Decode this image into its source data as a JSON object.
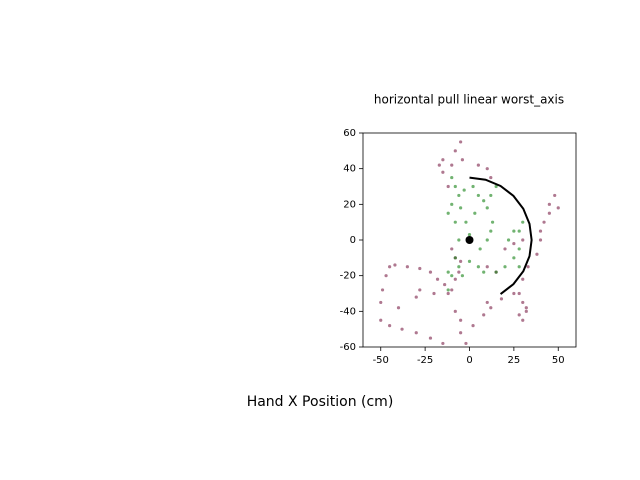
{
  "chart_data": {
    "type": "scatter",
    "title": "horizontal pull linear worst_axis",
    "x_label": "Hand X Position (cm)",
    "xlim": [
      -60,
      60
    ],
    "ylim": [
      -60,
      60
    ],
    "xticks": [
      -50,
      -25,
      0,
      25,
      50
    ],
    "yticks": [
      -60,
      -40,
      -20,
      0,
      20,
      40,
      60
    ],
    "series": [
      {
        "kind": "points",
        "color": "#6e0a34",
        "alpha": 0.55,
        "x": [
          -50,
          -50,
          -49,
          -47,
          -45,
          -42,
          -35,
          -28,
          -22,
          -18,
          -14,
          -10,
          -8,
          -6,
          -12,
          -20,
          -28,
          -30,
          -40,
          -45,
          -38,
          -30,
          -22,
          -15,
          -5,
          2,
          8,
          12,
          18,
          25,
          30,
          32,
          28,
          30,
          33,
          38,
          40,
          42,
          45,
          48,
          50,
          45,
          40,
          30,
          25,
          20,
          15,
          10,
          -5,
          -8,
          -10,
          -12,
          -15,
          -17,
          -15,
          -10,
          -8,
          -5,
          -4,
          5,
          10,
          12,
          -8,
          -5,
          -2,
          10,
          28,
          30,
          32
        ],
        "y": [
          -45,
          -35,
          -28,
          -20,
          -15,
          -14,
          -15,
          -16,
          -18,
          -22,
          -25,
          -28,
          -22,
          -18,
          -30,
          -30,
          -28,
          -32,
          -38,
          -48,
          -50,
          -52,
          -55,
          -58,
          -52,
          -48,
          -42,
          -38,
          -33,
          -30,
          -35,
          -40,
          -42,
          -22,
          -15,
          -8,
          0,
          10,
          20,
          25,
          18,
          15,
          5,
          0,
          -2,
          -5,
          -18,
          -15,
          -12,
          -10,
          -5,
          30,
          38,
          42,
          45,
          42,
          50,
          55,
          45,
          42,
          40,
          35,
          -40,
          -45,
          -58,
          -35,
          -30,
          -45,
          -38
        ]
      },
      {
        "kind": "points",
        "color": "#128012",
        "alpha": 0.6,
        "x": [
          -10,
          -8,
          -6,
          -10,
          -12,
          -8,
          -5,
          -3,
          2,
          5,
          8,
          10,
          12,
          15,
          13,
          12,
          10,
          -8,
          -6,
          -4,
          0,
          5,
          8,
          15,
          20,
          25,
          28,
          28,
          30,
          28,
          -10,
          -12,
          -12,
          -6,
          0,
          6,
          22,
          25,
          -2,
          3
        ],
        "y": [
          35,
          30,
          25,
          20,
          15,
          10,
          18,
          28,
          30,
          25,
          22,
          18,
          25,
          30,
          10,
          5,
          0,
          -10,
          -15,
          -20,
          -12,
          -15,
          -18,
          -18,
          -15,
          -10,
          -5,
          5,
          10,
          -15,
          -20,
          -28,
          -18,
          0,
          3,
          -5,
          0,
          5,
          10,
          15
        ]
      },
      {
        "kind": "line",
        "color": "#000000",
        "alpha": 1,
        "x": [
          0,
          9.06,
          17.5,
          24.75,
          30.31,
          33.81,
          35,
          33.81,
          30.31,
          24.75,
          17.5
        ],
        "y": [
          35,
          33.81,
          30.31,
          24.75,
          17.5,
          9.06,
          0,
          -9.06,
          -17.5,
          -24.75,
          -30.31
        ]
      },
      {
        "kind": "dot",
        "color": "#000000",
        "alpha": 1,
        "x": [
          0
        ],
        "y": [
          0
        ]
      }
    ]
  }
}
